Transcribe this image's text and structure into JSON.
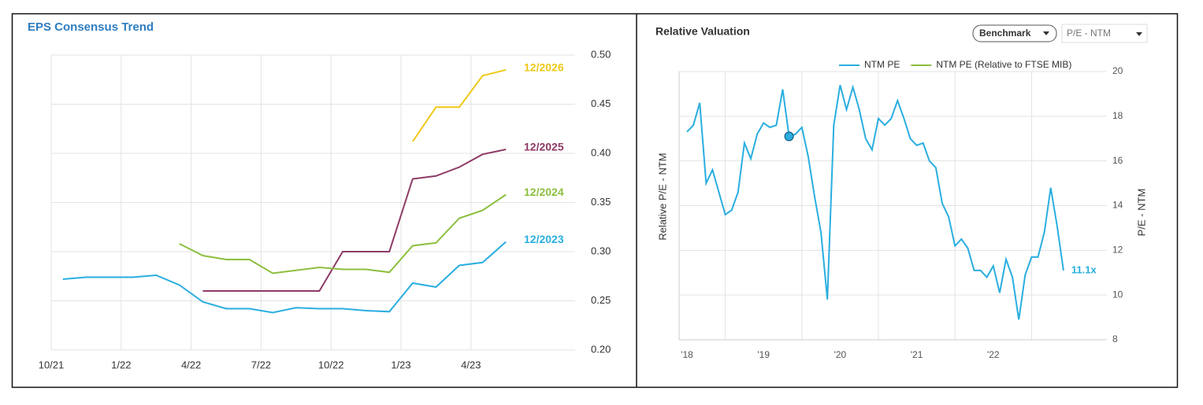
{
  "chart_data": [
    {
      "type": "line",
      "title": "EPS Consensus Trend",
      "categories": [
        "10/21",
        null,
        null,
        "1/22",
        null,
        null,
        "4/22",
        null,
        null,
        "7/22",
        null,
        null,
        "10/22",
        null,
        null,
        "1/23",
        null,
        null,
        "4/23",
        null
      ],
      "series": [
        {
          "name": "12/2026",
          "color": "#f0c818",
          "values": [
            null,
            null,
            null,
            null,
            null,
            null,
            null,
            null,
            null,
            null,
            null,
            null,
            null,
            null,
            null,
            0.412,
            0.447,
            0.447,
            0.479,
            0.485
          ]
        },
        {
          "name": "12/2025",
          "color": "#8e3a66",
          "values": [
            null,
            null,
            null,
            null,
            null,
            null,
            0.26,
            0.26,
            0.26,
            0.26,
            0.26,
            0.26,
            0.3,
            0.3,
            0.3,
            0.374,
            0.377,
            0.386,
            0.399,
            0.404
          ]
        },
        {
          "name": "12/2024",
          "color": "#8dbf3f",
          "values": [
            null,
            null,
            null,
            null,
            null,
            0.308,
            0.296,
            0.292,
            0.292,
            0.278,
            0.281,
            0.284,
            0.282,
            0.282,
            0.279,
            0.306,
            0.309,
            0.334,
            0.342,
            0.358
          ]
        },
        {
          "name": "12/2023",
          "color": "#2aaee0",
          "values": [
            0.272,
            0.274,
            0.274,
            0.274,
            0.276,
            0.266,
            0.249,
            0.242,
            0.242,
            0.238,
            0.243,
            0.242,
            0.242,
            0.24,
            0.239,
            0.268,
            0.264,
            0.286,
            0.289,
            0.31
          ]
        }
      ],
      "ylim": [
        0.2,
        0.5
      ],
      "yticks": [
        {
          "value": 0.5,
          "label": "0.50"
        },
        0.45,
        {
          "value": 0.4,
          "label": "0.40"
        },
        0.35,
        {
          "value": 0.3,
          "label": "0.30"
        },
        0.25,
        {
          "value": 0.2,
          "label": "0.20"
        }
      ],
      "grid": true
    },
    {
      "type": "line",
      "title": "Relative Valuation",
      "controls": [
        "Benchmark",
        "P/E - NTM"
      ],
      "y_label": "Relative P/E - NTM",
      "y2_label": "P/E - NTM",
      "categories": [
        "'18",
        null,
        null,
        null,
        null,
        null,
        null,
        null,
        null,
        null,
        null,
        null,
        "'19",
        null,
        null,
        null,
        null,
        null,
        null,
        null,
        null,
        null,
        null,
        null,
        "'20",
        null,
        null,
        null,
        null,
        null,
        null,
        null,
        null,
        null,
        null,
        null,
        "'21",
        null,
        null,
        null,
        null,
        null,
        null,
        null,
        null,
        null,
        null,
        null,
        "'22",
        null,
        null,
        null,
        null,
        null,
        null,
        null,
        null,
        null,
        null,
        null
      ],
      "series": [
        {
          "name": "NTM PE",
          "color": "#2aaee0",
          "axis": "y2",
          "values": [
            17.3,
            17.6,
            18.6,
            15.0,
            15.6,
            14.6,
            13.6,
            13.8,
            14.6,
            16.8,
            16.1,
            17.2,
            17.7,
            17.5,
            17.6,
            19.2,
            17.1,
            17.2,
            17.5,
            16.2,
            14.4,
            12.8,
            9.8,
            17.6,
            19.4,
            18.3,
            19.3,
            18.3,
            17.0,
            16.5,
            17.9,
            17.6,
            17.9,
            18.7,
            17.9,
            17.0,
            16.7,
            16.8,
            16.0,
            15.7,
            14.1,
            13.5,
            12.2,
            12.5,
            12.1,
            11.1,
            11.1,
            10.8,
            11.3,
            10.1,
            11.6,
            10.8,
            8.9,
            10.9,
            11.7,
            11.7,
            12.8,
            14.8,
            13.1,
            11.1
          ]
        },
        {
          "name": "NTM PE (Relative to FTSE MIB)",
          "color": "#8dbf3f"
        }
      ],
      "annotation": "11.1x",
      "y2lim": [
        8,
        20
      ],
      "y2ticks": [
        8,
        10,
        12,
        14,
        16,
        18,
        20
      ],
      "grid": true
    }
  ]
}
